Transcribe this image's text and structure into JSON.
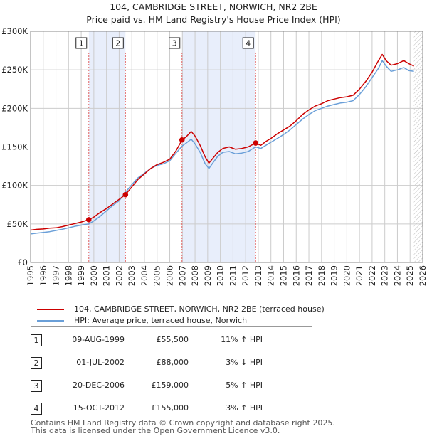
{
  "title_line1": "104, CAMBRIDGE STREET, NORWICH, NR2 2BE",
  "title_line2": "Price paid vs. HM Land Registry's House Price Index (HPI)",
  "colors": {
    "property": "#cc0000",
    "hpi": "#6a9fd8",
    "shade": "#e8eefb",
    "grid": "#cccccc",
    "vline": "#e06060"
  },
  "chart_data": {
    "type": "line",
    "x_range": [
      1995,
      2026
    ],
    "ylim": [
      0,
      300000
    ],
    "y_ticks": [
      {
        "value": 0,
        "label": "£0"
      },
      {
        "value": 50000,
        "label": "£50K"
      },
      {
        "value": 100000,
        "label": "£100K"
      },
      {
        "value": 150000,
        "label": "£150K"
      },
      {
        "value": 200000,
        "label": "£200K"
      },
      {
        "value": 250000,
        "label": "£250K"
      },
      {
        "value": 300000,
        "label": "£300K"
      }
    ],
    "x_ticks": [
      "1995",
      "1996",
      "1997",
      "1998",
      "1999",
      "2000",
      "2001",
      "2002",
      "2003",
      "2004",
      "2005",
      "2006",
      "2007",
      "2008",
      "2009",
      "2010",
      "2011",
      "2012",
      "2013",
      "2014",
      "2015",
      "2016",
      "2017",
      "2018",
      "2019",
      "2020",
      "2021",
      "2022",
      "2023",
      "2024",
      "2025",
      "2026"
    ],
    "future_hatch_from": 2025.3,
    "shaded_periods": [
      [
        1999.6,
        2002.5
      ],
      [
        2006.97,
        2012.79
      ]
    ],
    "series": [
      {
        "name": "104, CAMBRIDGE STREET, NORWICH, NR2 2BE (terraced house)",
        "points": [
          [
            1995.0,
            42000
          ],
          [
            1995.5,
            43000
          ],
          [
            1996.0,
            43500
          ],
          [
            1996.5,
            44500
          ],
          [
            1997.0,
            45000
          ],
          [
            1997.5,
            46500
          ],
          [
            1998.0,
            48500
          ],
          [
            1998.5,
            50500
          ],
          [
            1999.0,
            52500
          ],
          [
            1999.6,
            55500
          ],
          [
            2000.0,
            59000
          ],
          [
            2000.5,
            65000
          ],
          [
            2001.0,
            70000
          ],
          [
            2001.5,
            76000
          ],
          [
            2002.0,
            82000
          ],
          [
            2002.5,
            88000
          ],
          [
            2003.0,
            98000
          ],
          [
            2003.5,
            108000
          ],
          [
            2004.0,
            115000
          ],
          [
            2004.5,
            122000
          ],
          [
            2005.0,
            127000
          ],
          [
            2005.5,
            130000
          ],
          [
            2006.0,
            134000
          ],
          [
            2006.5,
            145000
          ],
          [
            2006.97,
            159000
          ],
          [
            2007.3,
            163000
          ],
          [
            2007.7,
            170000
          ],
          [
            2008.0,
            164000
          ],
          [
            2008.4,
            152000
          ],
          [
            2008.8,
            137000
          ],
          [
            2009.1,
            129000
          ],
          [
            2009.4,
            135000
          ],
          [
            2009.8,
            143000
          ],
          [
            2010.2,
            148000
          ],
          [
            2010.7,
            150000
          ],
          [
            2011.2,
            147000
          ],
          [
            2011.7,
            148000
          ],
          [
            2012.2,
            150000
          ],
          [
            2012.79,
            155000
          ],
          [
            2013.2,
            152000
          ],
          [
            2013.6,
            157000
          ],
          [
            2014.0,
            161000
          ],
          [
            2014.5,
            167000
          ],
          [
            2015.0,
            172000
          ],
          [
            2015.5,
            177000
          ],
          [
            2016.0,
            184000
          ],
          [
            2016.5,
            192000
          ],
          [
            2017.0,
            198000
          ],
          [
            2017.5,
            203000
          ],
          [
            2018.0,
            206000
          ],
          [
            2018.5,
            210000
          ],
          [
            2019.0,
            212000
          ],
          [
            2019.5,
            214000
          ],
          [
            2020.0,
            215000
          ],
          [
            2020.5,
            217000
          ],
          [
            2021.0,
            225000
          ],
          [
            2021.5,
            235000
          ],
          [
            2022.0,
            247000
          ],
          [
            2022.5,
            262000
          ],
          [
            2022.8,
            270000
          ],
          [
            2023.1,
            262000
          ],
          [
            2023.5,
            256000
          ],
          [
            2024.0,
            258000
          ],
          [
            2024.5,
            262000
          ],
          [
            2024.9,
            258000
          ],
          [
            2025.3,
            255000
          ]
        ]
      },
      {
        "name": "HPI: Average price, terraced house, Norwich",
        "points": [
          [
            1995.0,
            37000
          ],
          [
            1995.5,
            38000
          ],
          [
            1996.0,
            39000
          ],
          [
            1996.5,
            40000
          ],
          [
            1997.0,
            41500
          ],
          [
            1997.5,
            43000
          ],
          [
            1998.0,
            45000
          ],
          [
            1998.5,
            47000
          ],
          [
            1999.0,
            48500
          ],
          [
            1999.6,
            50000
          ],
          [
            2000.0,
            54000
          ],
          [
            2000.5,
            60000
          ],
          [
            2001.0,
            67000
          ],
          [
            2001.5,
            74000
          ],
          [
            2002.0,
            80000
          ],
          [
            2002.5,
            91000
          ],
          [
            2003.0,
            101000
          ],
          [
            2003.5,
            110000
          ],
          [
            2004.0,
            116000
          ],
          [
            2004.5,
            122000
          ],
          [
            2005.0,
            126000
          ],
          [
            2005.5,
            128000
          ],
          [
            2006.0,
            132000
          ],
          [
            2006.5,
            142000
          ],
          [
            2006.97,
            151000
          ],
          [
            2007.3,
            155000
          ],
          [
            2007.7,
            160000
          ],
          [
            2008.0,
            154000
          ],
          [
            2008.4,
            143000
          ],
          [
            2008.8,
            128000
          ],
          [
            2009.1,
            122000
          ],
          [
            2009.4,
            129000
          ],
          [
            2009.8,
            138000
          ],
          [
            2010.2,
            143000
          ],
          [
            2010.7,
            144000
          ],
          [
            2011.2,
            141000
          ],
          [
            2011.7,
            142000
          ],
          [
            2012.2,
            144000
          ],
          [
            2012.79,
            150000
          ],
          [
            2013.2,
            148000
          ],
          [
            2013.6,
            152000
          ],
          [
            2014.0,
            156000
          ],
          [
            2014.5,
            161000
          ],
          [
            2015.0,
            166000
          ],
          [
            2015.5,
            172000
          ],
          [
            2016.0,
            179000
          ],
          [
            2016.5,
            186000
          ],
          [
            2017.0,
            192000
          ],
          [
            2017.5,
            197000
          ],
          [
            2018.0,
            200000
          ],
          [
            2018.5,
            203000
          ],
          [
            2019.0,
            205000
          ],
          [
            2019.5,
            207000
          ],
          [
            2020.0,
            208000
          ],
          [
            2020.5,
            210000
          ],
          [
            2021.0,
            218000
          ],
          [
            2021.5,
            228000
          ],
          [
            2022.0,
            240000
          ],
          [
            2022.5,
            252000
          ],
          [
            2022.8,
            262000
          ],
          [
            2023.1,
            255000
          ],
          [
            2023.5,
            248000
          ],
          [
            2024.0,
            250000
          ],
          [
            2024.5,
            253000
          ],
          [
            2024.9,
            249000
          ],
          [
            2025.3,
            248000
          ]
        ]
      }
    ],
    "sales": [
      {
        "num": "1",
        "x": 1999.6,
        "y": 55500
      },
      {
        "num": "2",
        "x": 2002.5,
        "y": 88000
      },
      {
        "num": "3",
        "x": 2006.97,
        "y": 159000
      },
      {
        "num": "4",
        "x": 2012.79,
        "y": 155000
      }
    ]
  },
  "legend": {
    "property_label": "104, CAMBRIDGE STREET, NORWICH, NR2 2BE (terraced house)",
    "hpi_label": "HPI: Average price, terraced house, Norwich"
  },
  "sales_table": [
    {
      "num": "1",
      "date": "09-AUG-1999",
      "price": "£55,500",
      "hpi": "11% ↑ HPI"
    },
    {
      "num": "2",
      "date": "01-JUL-2002",
      "price": "£88,000",
      "hpi": "3% ↓ HPI"
    },
    {
      "num": "3",
      "date": "20-DEC-2006",
      "price": "£159,000",
      "hpi": "5% ↑ HPI"
    },
    {
      "num": "4",
      "date": "15-OCT-2012",
      "price": "£155,000",
      "hpi": "3% ↑ HPI"
    }
  ],
  "footer_line1": "Contains HM Land Registry data © Crown copyright and database right 2025.",
  "footer_line2": "This data is licensed under the Open Government Licence v3.0."
}
